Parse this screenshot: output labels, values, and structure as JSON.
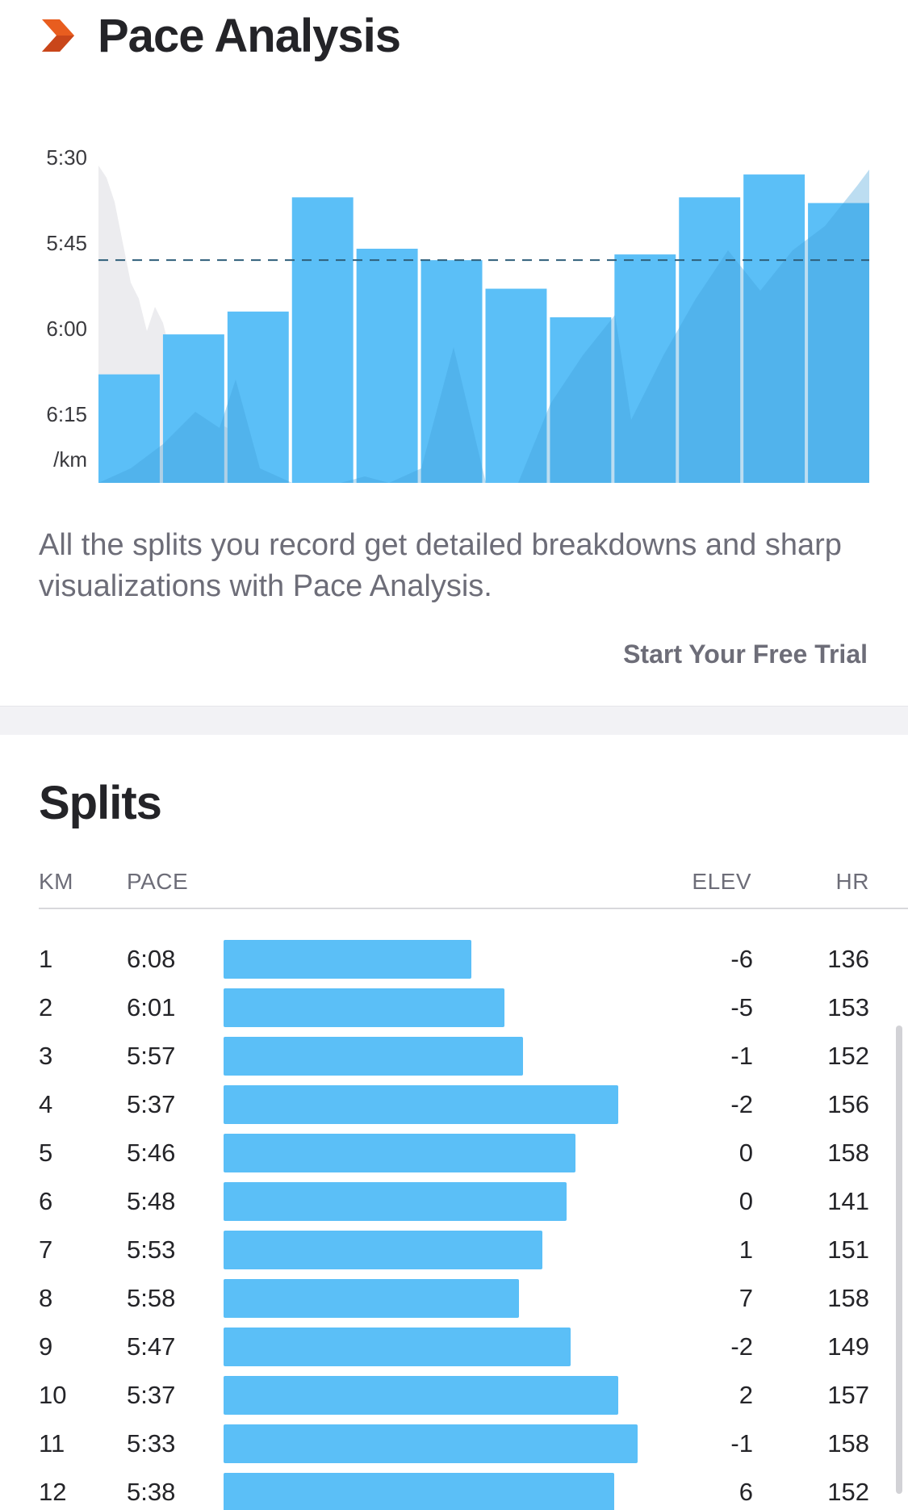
{
  "header": {
    "title": "Pace Analysis",
    "logo_icon": "strava-chevron-icon",
    "logo_color": "#e85d1f"
  },
  "chart_data": {
    "type": "bar",
    "y_axis_reversed": true,
    "yticks": [
      "5:30",
      "5:45",
      "6:00",
      "6:15"
    ],
    "ytick_seconds": [
      330,
      345,
      360,
      375
    ],
    "unit_label": "/km",
    "ylim_seconds": [
      318,
      387
    ],
    "categories": [
      1,
      2,
      3,
      4,
      5,
      6,
      7,
      8,
      9,
      10,
      11,
      12
    ],
    "values_seconds": [
      368,
      361,
      357,
      337,
      346,
      348,
      353,
      358,
      347,
      337,
      333,
      338
    ],
    "average_seconds": 348,
    "bar_color": "#5bbff7",
    "grid": false
  },
  "description": "All the splits you record get detailed breakdowns and sharp visualizations with Pace Analysis.",
  "trial_label": "Start Your Free Trial",
  "splits": {
    "title": "Splits",
    "headers": {
      "km": "KM",
      "pace": "PACE",
      "elev": "ELEV",
      "hr": "HR"
    },
    "bar_color": "#5bbff7",
    "rows": [
      {
        "km": "1",
        "pace": "6:08",
        "elev": "-6",
        "hr": "136"
      },
      {
        "km": "2",
        "pace": "6:01",
        "elev": "-5",
        "hr": "153"
      },
      {
        "km": "3",
        "pace": "5:57",
        "elev": "-1",
        "hr": "152"
      },
      {
        "km": "4",
        "pace": "5:37",
        "elev": "-2",
        "hr": "156"
      },
      {
        "km": "5",
        "pace": "5:46",
        "elev": "0",
        "hr": "158"
      },
      {
        "km": "6",
        "pace": "5:48",
        "elev": "0",
        "hr": "141"
      },
      {
        "km": "7",
        "pace": "5:53",
        "elev": "1",
        "hr": "151"
      },
      {
        "km": "8",
        "pace": "5:58",
        "elev": "7",
        "hr": "158"
      },
      {
        "km": "9",
        "pace": "5:47",
        "elev": "-2",
        "hr": "149"
      },
      {
        "km": "10",
        "pace": "5:37",
        "elev": "2",
        "hr": "157"
      },
      {
        "km": "11",
        "pace": "5:33",
        "elev": "-1",
        "hr": "158"
      },
      {
        "km": "12",
        "pace": "5:38",
        "elev": "6",
        "hr": "152"
      }
    ]
  }
}
